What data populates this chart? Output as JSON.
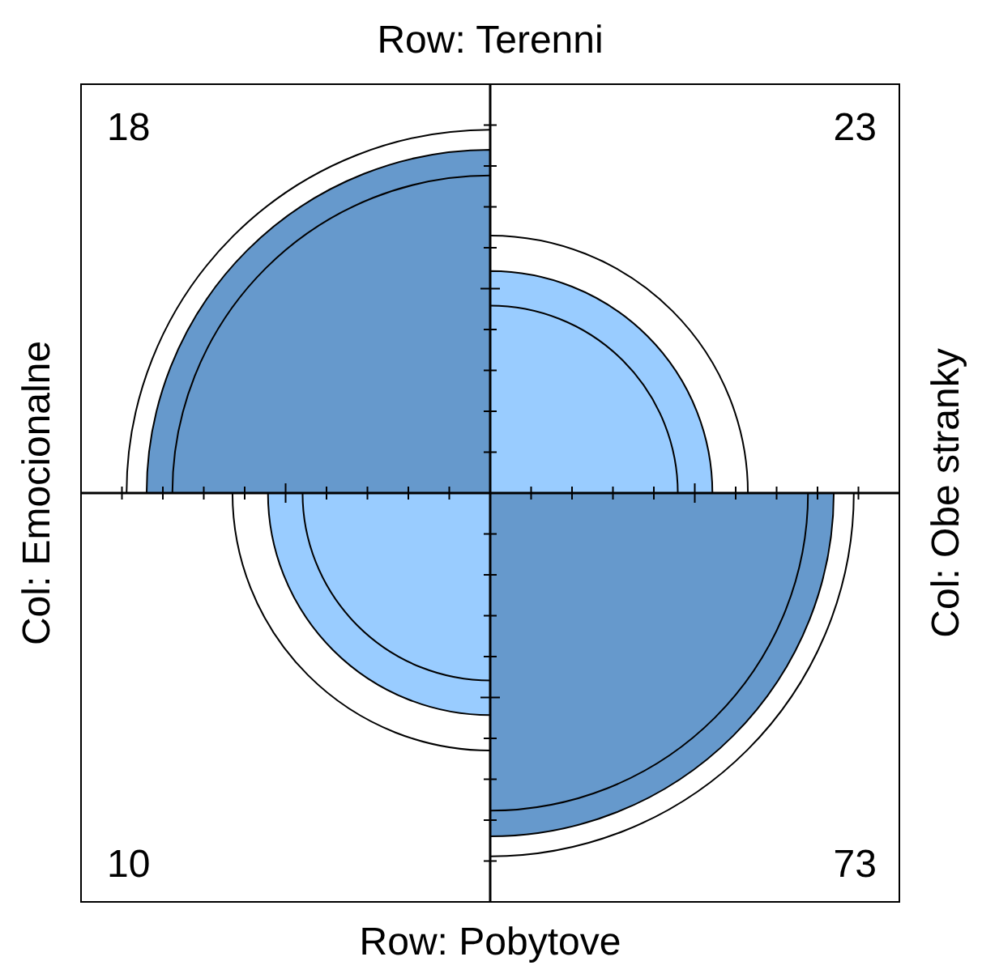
{
  "chart_data": {
    "type": "other",
    "title": "Row: Terenni",
    "xlabel": "Row: Pobytove",
    "ylabel": "Col: Emocionalne",
    "y2label": "Col: Obe stranky",
    "categories": [
      null,
      null,
      null,
      null
    ],
    "values": [
      18,
      23,
      10,
      73
    ],
    "data_labels": true,
    "colors": [
      "#6699cc",
      "#99ccff",
      "#99ccff",
      "#6699cc"
    ]
  }
}
